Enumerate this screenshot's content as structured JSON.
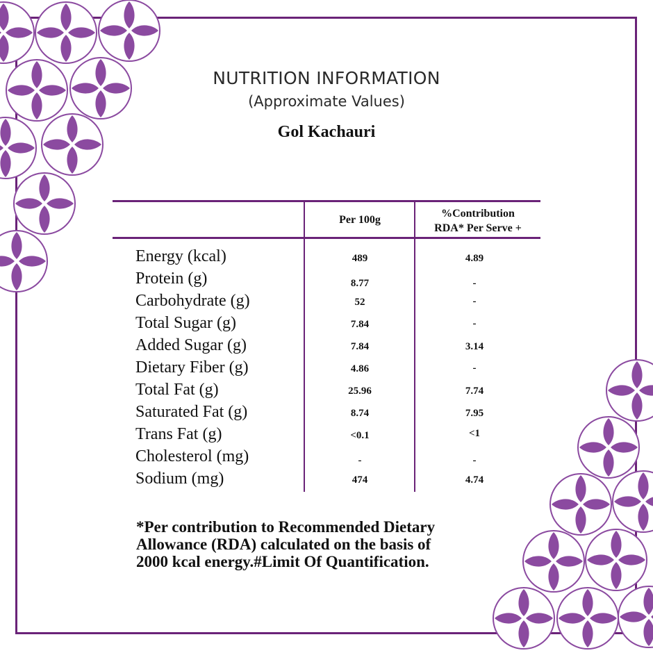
{
  "header": {
    "title": "NUTRITION INFORMATION",
    "subtitle": "(Approximate Values)",
    "product": "Gol Kachauri"
  },
  "table": {
    "columns": [
      "Per 100g",
      "%Contribution",
      "RDA* Per Serve +"
    ],
    "rows": [
      {
        "label": "Energy (kcal)",
        "per100g": "489",
        "rda": "4.89"
      },
      {
        "label": "Protein (g)",
        "per100g": "8.77",
        "rda": "-"
      },
      {
        "label": "Carbohydrate (g)",
        "per100g": "52",
        "rda": "-"
      },
      {
        "label": "Total Sugar (g)",
        "per100g": "7.84",
        "rda": "-"
      },
      {
        "label": "Added Sugar (g)",
        "per100g": "7.84",
        "rda": "3.14"
      },
      {
        "label": "Dietary Fiber (g)",
        "per100g": "4.86",
        "rda": "-"
      },
      {
        "label": "Total Fat (g)",
        "per100g": "25.96",
        "rda": "7.74"
      },
      {
        "label": "Saturated Fat (g)",
        "per100g": "8.74",
        "rda": "7.95"
      },
      {
        "label": "Trans Fat (g)",
        "per100g": "<0.1",
        "rda": "<1"
      },
      {
        "label": "Cholesterol (mg)",
        "per100g": "-",
        "rda": "-"
      },
      {
        "label": "Sodium (mg)",
        "per100g": "474",
        "rda": "4.74"
      }
    ]
  },
  "footnote": {
    "line1": "*Per contribution to Recommended Dietary",
    "line2": "Allowance (RDA) calculated on the basis of",
    "line3": "2000 kcal energy.#Limit Of Quantification."
  },
  "colors": {
    "accent": "#6a2378",
    "petal": "#8b4aa0"
  }
}
